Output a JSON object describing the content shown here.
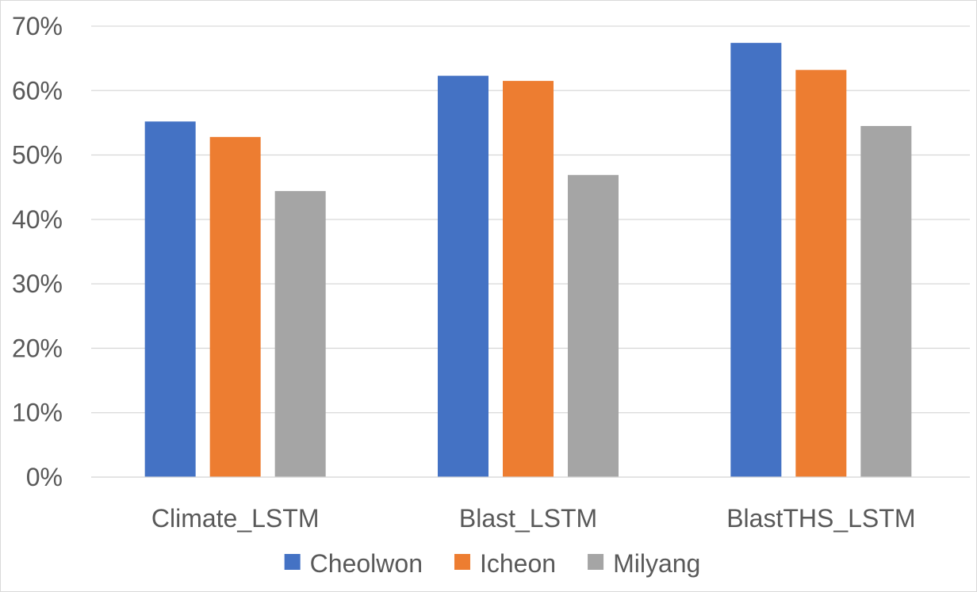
{
  "chart_data": {
    "type": "bar",
    "categories": [
      "Climate_LSTM",
      "Blast_LSTM",
      "BlastTHS_LSTM"
    ],
    "series": [
      {
        "name": "Cheolwon",
        "color": "#4472C4",
        "values": [
          55.2,
          62.3,
          67.4
        ]
      },
      {
        "name": "Icheon",
        "color": "#ED7D31",
        "values": [
          52.8,
          61.5,
          63.2
        ]
      },
      {
        "name": "Milyang",
        "color": "#A5A5A5",
        "values": [
          44.4,
          46.9,
          54.5
        ]
      }
    ],
    "y_ticks": [
      "0%",
      "10%",
      "20%",
      "30%",
      "40%",
      "50%",
      "60%",
      "70%"
    ],
    "ylim": [
      0,
      70
    ],
    "y_unit": "%",
    "grid": true,
    "legend_position": "bottom"
  }
}
